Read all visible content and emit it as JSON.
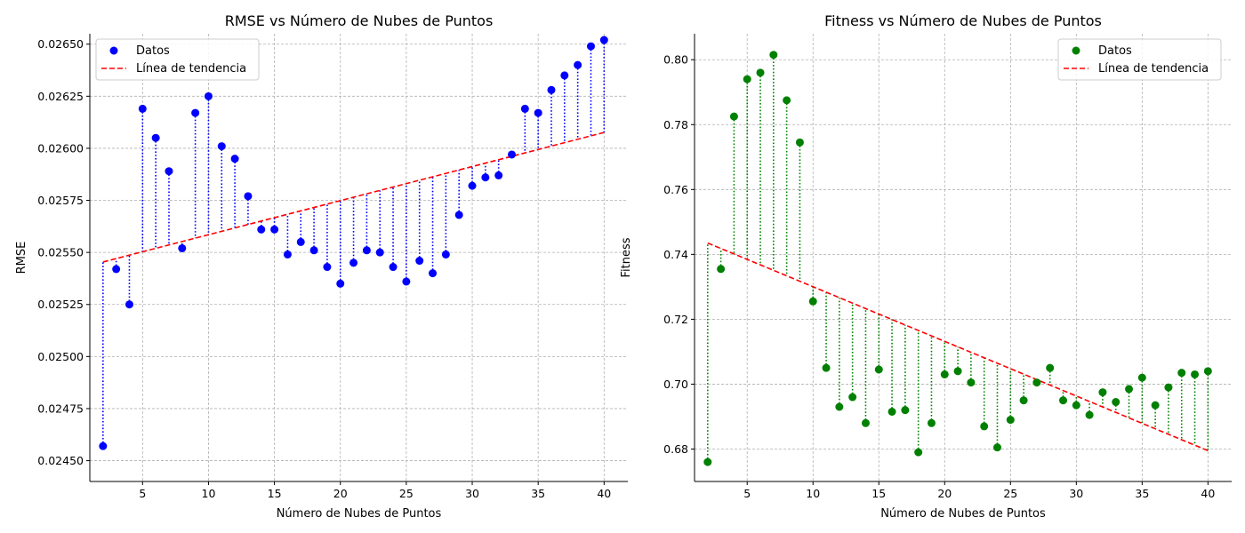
{
  "chart_data": [
    {
      "type": "scatter",
      "title": "RMSE vs Número de Nubes de Puntos",
      "xlabel": "Número de Nubes de Puntos",
      "ylabel": "RMSE",
      "xlim": [
        1,
        41.8
      ],
      "ylim": [
        0.0244,
        0.02655
      ],
      "xticks": [
        5,
        10,
        15,
        20,
        25,
        30,
        35,
        40
      ],
      "yticks": [
        0.0245,
        0.02475,
        0.025,
        0.02525,
        0.0255,
        0.02575,
        0.026,
        0.02625,
        0.0265
      ],
      "ytick_labels": [
        "0.02450",
        "0.02475",
        "0.02500",
        "0.02525",
        "0.02550",
        "0.02575",
        "0.02600",
        "0.02625",
        "0.02650"
      ],
      "grid": true,
      "legend_position": "top-left",
      "point_color": "#0000ff",
      "residual_color": "#0000ff",
      "trend_color": "#ff0000",
      "legend": [
        "Datos",
        "Línea de tendencia"
      ],
      "x": [
        2,
        3,
        4,
        5,
        6,
        7,
        8,
        9,
        10,
        11,
        12,
        13,
        14,
        15,
        16,
        17,
        18,
        19,
        20,
        21,
        22,
        23,
        24,
        25,
        26,
        27,
        28,
        29,
        30,
        31,
        32,
        33,
        34,
        35,
        36,
        37,
        38,
        39,
        40
      ],
      "y": [
        0.02457,
        0.02542,
        0.02525,
        0.02619,
        0.02605,
        0.02589,
        0.02552,
        0.02617,
        0.02625,
        0.02601,
        0.02595,
        0.02577,
        0.02561,
        0.02561,
        0.02549,
        0.02555,
        0.02551,
        0.02543,
        0.02535,
        0.02545,
        0.02551,
        0.0255,
        0.02543,
        0.02536,
        0.02546,
        0.0254,
        0.02549,
        0.02568,
        0.02582,
        0.02586,
        0.02587,
        0.02597,
        0.02619,
        0.02617,
        0.02628,
        0.02635,
        0.0264,
        0.02649,
        0.02652
      ],
      "trend": {
        "x": [
          2,
          40
        ],
        "y": [
          0.025454,
          0.026076
        ]
      }
    },
    {
      "type": "scatter",
      "title": "Fitness vs Número de Nubes de Puntos",
      "xlabel": "Número de Nubes de Puntos",
      "ylabel": "Fitness",
      "xlim": [
        1,
        41.8
      ],
      "ylim": [
        0.67,
        0.808
      ],
      "xticks": [
        5,
        10,
        15,
        20,
        25,
        30,
        35,
        40
      ],
      "yticks": [
        0.68,
        0.7,
        0.72,
        0.74,
        0.76,
        0.78,
        0.8
      ],
      "ytick_labels": [
        "0.68",
        "0.70",
        "0.72",
        "0.74",
        "0.76",
        "0.78",
        "0.80"
      ],
      "grid": true,
      "legend_position": "top-right",
      "point_color": "#008000",
      "residual_color": "#008000",
      "trend_color": "#ff0000",
      "legend": [
        "Datos",
        "Línea de tendencia"
      ],
      "x": [
        2,
        3,
        4,
        5,
        6,
        7,
        8,
        9,
        10,
        11,
        12,
        13,
        14,
        15,
        16,
        17,
        18,
        19,
        20,
        21,
        22,
        23,
        24,
        25,
        26,
        27,
        28,
        29,
        30,
        31,
        32,
        33,
        34,
        35,
        36,
        37,
        38,
        39,
        40
      ],
      "y": [
        0.676,
        0.7355,
        0.7825,
        0.794,
        0.796,
        0.8015,
        0.7875,
        0.7745,
        0.7255,
        0.705,
        0.693,
        0.696,
        0.688,
        0.7045,
        0.6915,
        0.692,
        0.679,
        0.688,
        0.703,
        0.704,
        0.7005,
        0.687,
        0.6805,
        0.689,
        0.695,
        0.7005,
        0.705,
        0.695,
        0.6935,
        0.6905,
        0.6975,
        0.6945,
        0.6985,
        0.702,
        0.6935,
        0.699,
        0.7035,
        0.703,
        0.704
      ],
      "trend": {
        "x": [
          2,
          40
        ],
        "y": [
          0.7435,
          0.6795
        ]
      }
    }
  ]
}
